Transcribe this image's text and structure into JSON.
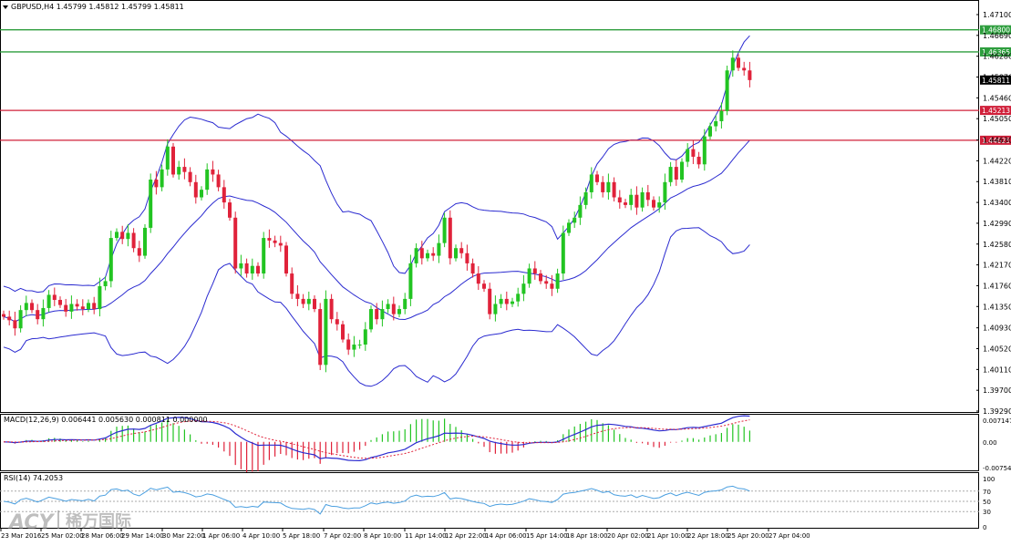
{
  "header": {
    "title": "GBPUSD,H4  1.45799 1.45812 1.45799 1.45811",
    "macd_label": "MACD(12,26,9) 0.006441 0.005630 0.000811 0.000000",
    "rsi_label": "RSI(14) 74.2053"
  },
  "watermark": {
    "brand": "ACY",
    "cn": "稀万国际"
  },
  "colors": {
    "bull": "#22c422",
    "bear": "#e0223a",
    "band": "#2b2bd0",
    "hline_green": "#2e9e3e",
    "hline_red": "#d0203a",
    "rsi": "#4a9fe0",
    "macd_signal": "#e0223a"
  },
  "chart_data": {
    "type": "candlestick",
    "symbol": "GBPUSD",
    "timeframe": "H4",
    "ylim": [
      1.3929,
      1.471
    ],
    "y_ticks": [
      "1.47100",
      "1.46690",
      "1.46280",
      "1.45870",
      "1.45460",
      "1.45050",
      "1.44630",
      "1.44220",
      "1.43810",
      "1.43400",
      "1.42990",
      "1.42580",
      "1.42170",
      "1.41760",
      "1.41350",
      "1.40930",
      "1.40520",
      "1.40110",
      "1.39700",
      "1.39290"
    ],
    "x_ticks": [
      "23 Mar 2016",
      "25 Mar 02:00",
      "28 Mar 06:00",
      "29 Mar 14:00",
      "30 Mar 22:00",
      "1 Apr 06:00",
      "4 Apr 10:00",
      "5 Apr 18:00",
      "7 Apr 02:00",
      "8 Apr 10:00",
      "11 Apr 14:00",
      "12 Apr 22:00",
      "14 Apr 06:00",
      "15 Apr 14:00",
      "18 Apr 18:00",
      "20 Apr 02:00",
      "21 Apr 10:00",
      "22 Apr 18:00",
      "25 Apr 20:00",
      "27 Apr 04:00"
    ],
    "levels": [
      {
        "value": 1.468,
        "label": "1.46800",
        "color": "green"
      },
      {
        "value": 1.46365,
        "label": "1.46365",
        "color": "green"
      },
      {
        "value": 1.45213,
        "label": "1.45213",
        "color": "red"
      },
      {
        "value": 1.44625,
        "label": "1.44625",
        "color": "red"
      }
    ],
    "current_price": {
      "value": 1.45811,
      "label": "1.45811"
    },
    "closes": [
      1.4115,
      1.4108,
      1.4092,
      1.4128,
      1.4142,
      1.4128,
      1.411,
      1.4132,
      1.4158,
      1.4148,
      1.4138,
      1.4125,
      1.414,
      1.4135,
      1.413,
      1.4142,
      1.413,
      1.4175,
      1.4185,
      1.427,
      1.4282,
      1.4268,
      1.428,
      1.425,
      1.4235,
      1.429,
      1.4385,
      1.437,
      1.4405,
      1.445,
      1.4395,
      1.441,
      1.44,
      1.438,
      1.435,
      1.4365,
      1.4405,
      1.4395,
      1.437,
      1.434,
      1.431,
      1.421,
      1.422,
      1.42,
      1.4215,
      1.42,
      1.427,
      1.4265,
      1.426,
      1.4255,
      1.42,
      1.416,
      1.415,
      1.414,
      1.415,
      1.413,
      1.402,
      1.415,
      1.411,
      1.41,
      1.407,
      1.405,
      1.406,
      1.406,
      1.409,
      1.413,
      1.411,
      1.413,
      1.414,
      1.412,
      1.413,
      1.415,
      1.422,
      1.425,
      1.423,
      1.424,
      1.4235,
      1.426,
      1.431,
      1.423,
      1.425,
      1.424,
      1.422,
      1.42,
      1.418,
      1.417,
      1.412,
      1.414,
      1.415,
      1.414,
      1.4145,
      1.416,
      1.418,
      1.421,
      1.42,
      1.4185,
      1.418,
      1.417,
      1.42,
      1.428,
      1.43,
      1.431,
      1.4335,
      1.436,
      1.4395,
      1.438,
      1.436,
      1.438,
      1.435,
      1.434,
      1.4335,
      1.4355,
      1.433,
      1.436,
      1.4345,
      1.433,
      1.434,
      1.438,
      1.441,
      1.4385,
      1.442,
      1.4445,
      1.443,
      1.4415,
      1.447,
      1.449,
      1.45,
      1.452,
      1.46,
      1.4625,
      1.4605,
      1.46,
      1.4581
    ],
    "series": [
      {
        "name": "Bollinger upper"
      },
      {
        "name": "Bollinger middle"
      },
      {
        "name": "Bollinger lower"
      }
    ],
    "macd": {
      "ylim": [
        -0.00754,
        0.00714
      ],
      "ticks": [
        "0.007147",
        "0.00",
        "-0.007546"
      ]
    },
    "rsi": {
      "ylim": [
        0,
        100
      ],
      "ticks": [
        "100",
        "70",
        "50",
        "30",
        "0"
      ],
      "levels": [
        70,
        50,
        30
      ]
    }
  }
}
